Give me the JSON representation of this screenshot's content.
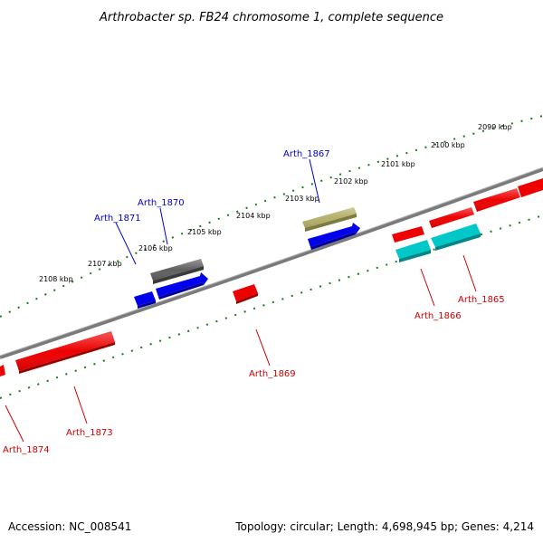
{
  "title": "Arthrobacter sp. FB24 chromosome 1, complete sequence",
  "footer": {
    "accession": "Accession: NC_008541",
    "topology": "Topology: circular; Length: 4,698,945 bp; Genes: 4,214"
  },
  "colors": {
    "backbone": "#808080",
    "tick": "#1a7a1a",
    "plus_strand_label": "#0000cc",
    "minus_strand_label": "#cc0000"
  },
  "scale": {
    "unit": "kbp",
    "labels": [
      "2099 kbp",
      "2100 kbp",
      "2101 kbp",
      "2102 kbp",
      "2103 kbp",
      "2104 kbp",
      "2105 kbp",
      "2106 kbp",
      "2107 kbp",
      "2108 kbp"
    ]
  },
  "genes": [
    {
      "name": "Arth_1867",
      "strand": "plus",
      "color": "#b5b06a"
    },
    {
      "name": "Arth_1870",
      "strand": "plus",
      "color": "#606060"
    },
    {
      "name": "Arth_1871",
      "strand": "plus",
      "color": "#0000ee"
    },
    {
      "name": "Arth_1865",
      "strand": "minus",
      "color": "#ee0000"
    },
    {
      "name": "Arth_1866",
      "strand": "minus",
      "color": "#00c8c8"
    },
    {
      "name": "Arth_1869",
      "strand": "minus",
      "color": "#ee0000"
    },
    {
      "name": "Arth_1873",
      "strand": "minus",
      "color": "#ee0000"
    },
    {
      "name": "Arth_1874",
      "strand": "minus",
      "color": "#ee0000"
    }
  ]
}
